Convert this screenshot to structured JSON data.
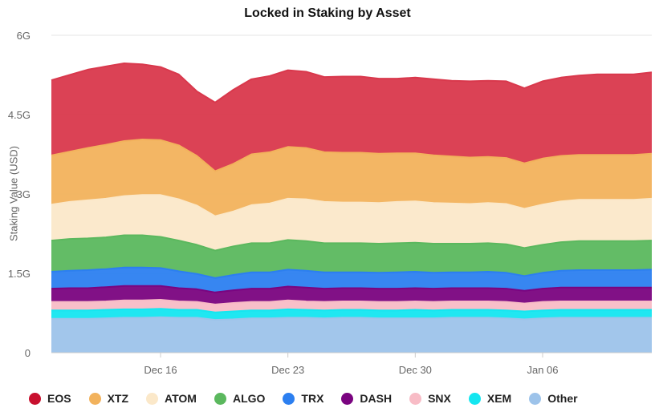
{
  "chart_data": {
    "type": "area",
    "stacked": true,
    "title": "Locked in Staking by Asset",
    "ylabel": "Staking Value (USD)",
    "xlabel": "",
    "ylim": [
      0,
      6
    ],
    "y_ticks": [
      {
        "value": 0,
        "label": "0"
      },
      {
        "value": 1.5,
        "label": "1.5G"
      },
      {
        "value": 3,
        "label": "3G"
      },
      {
        "value": 4.5,
        "label": "4.5G"
      },
      {
        "value": 6,
        "label": "6G"
      }
    ],
    "x_start": "2019-12-10",
    "x_end": "2020-01-12",
    "x_ticks": [
      {
        "date": "2019-12-16",
        "label": "Dec 16"
      },
      {
        "date": "2019-12-23",
        "label": "Dec 23"
      },
      {
        "date": "2019-12-30",
        "label": "Dec 30"
      },
      {
        "date": "2020-01-06",
        "label": "Jan 06"
      }
    ],
    "grid": "horizontal",
    "legend_position": "bottom",
    "x": [
      "2019-12-10",
      "2019-12-11",
      "2019-12-12",
      "2019-12-13",
      "2019-12-14",
      "2019-12-15",
      "2019-12-16",
      "2019-12-17",
      "2019-12-18",
      "2019-12-19",
      "2019-12-20",
      "2019-12-21",
      "2019-12-22",
      "2019-12-23",
      "2019-12-24",
      "2019-12-25",
      "2019-12-26",
      "2019-12-27",
      "2019-12-28",
      "2019-12-29",
      "2019-12-30",
      "2019-12-31",
      "2020-01-01",
      "2020-01-02",
      "2020-01-03",
      "2020-01-04",
      "2020-01-05",
      "2020-01-06",
      "2020-01-07",
      "2020-01-08",
      "2020-01-09",
      "2020-01-10",
      "2020-01-11",
      "2020-01-12"
    ],
    "series": [
      {
        "name": "Other",
        "color": "#9dc3ea",
        "values": [
          0.64,
          0.64,
          0.64,
          0.65,
          0.66,
          0.66,
          0.67,
          0.66,
          0.66,
          0.62,
          0.63,
          0.65,
          0.65,
          0.66,
          0.66,
          0.65,
          0.66,
          0.66,
          0.65,
          0.65,
          0.65,
          0.65,
          0.66,
          0.66,
          0.66,
          0.65,
          0.63,
          0.65,
          0.66,
          0.66,
          0.66,
          0.66,
          0.66,
          0.66
        ]
      },
      {
        "name": "XEM",
        "color": "#14e6f0",
        "values": [
          0.16,
          0.16,
          0.16,
          0.16,
          0.16,
          0.16,
          0.16,
          0.15,
          0.15,
          0.14,
          0.15,
          0.15,
          0.15,
          0.16,
          0.15,
          0.15,
          0.15,
          0.15,
          0.15,
          0.15,
          0.16,
          0.15,
          0.15,
          0.15,
          0.15,
          0.15,
          0.15,
          0.15,
          0.15,
          0.15,
          0.15,
          0.15,
          0.15,
          0.15
        ]
      },
      {
        "name": "SNX",
        "color": "#f8bcc6",
        "values": [
          0.16,
          0.16,
          0.16,
          0.16,
          0.17,
          0.17,
          0.17,
          0.16,
          0.15,
          0.15,
          0.16,
          0.16,
          0.16,
          0.17,
          0.16,
          0.16,
          0.16,
          0.16,
          0.16,
          0.16,
          0.16,
          0.16,
          0.16,
          0.16,
          0.16,
          0.16,
          0.15,
          0.16,
          0.16,
          0.16,
          0.16,
          0.16,
          0.16,
          0.16
        ]
      },
      {
        "name": "DASH",
        "color": "#7a0480",
        "values": [
          0.25,
          0.26,
          0.26,
          0.27,
          0.27,
          0.27,
          0.26,
          0.25,
          0.24,
          0.23,
          0.24,
          0.25,
          0.25,
          0.26,
          0.26,
          0.25,
          0.25,
          0.25,
          0.25,
          0.25,
          0.25,
          0.25,
          0.25,
          0.25,
          0.25,
          0.25,
          0.24,
          0.25,
          0.26,
          0.26,
          0.26,
          0.26,
          0.26,
          0.26
        ]
      },
      {
        "name": "TRX",
        "color": "#2c7ff0",
        "values": [
          0.32,
          0.33,
          0.34,
          0.34,
          0.35,
          0.35,
          0.34,
          0.32,
          0.29,
          0.27,
          0.29,
          0.31,
          0.31,
          0.32,
          0.32,
          0.31,
          0.3,
          0.3,
          0.3,
          0.31,
          0.31,
          0.3,
          0.3,
          0.3,
          0.31,
          0.3,
          0.28,
          0.3,
          0.32,
          0.33,
          0.33,
          0.33,
          0.33,
          0.34
        ]
      },
      {
        "name": "ALGO",
        "color": "#5bb85e",
        "values": [
          0.59,
          0.6,
          0.6,
          0.6,
          0.61,
          0.61,
          0.59,
          0.58,
          0.55,
          0.52,
          0.54,
          0.55,
          0.55,
          0.56,
          0.56,
          0.55,
          0.55,
          0.55,
          0.55,
          0.55,
          0.55,
          0.55,
          0.54,
          0.54,
          0.54,
          0.54,
          0.53,
          0.53,
          0.54,
          0.55,
          0.55,
          0.55,
          0.55,
          0.55
        ]
      },
      {
        "name": "ATOM",
        "color": "#fbe8c9",
        "values": [
          0.68,
          0.7,
          0.72,
          0.73,
          0.74,
          0.76,
          0.79,
          0.78,
          0.74,
          0.65,
          0.66,
          0.72,
          0.75,
          0.78,
          0.79,
          0.78,
          0.77,
          0.77,
          0.77,
          0.78,
          0.78,
          0.77,
          0.76,
          0.75,
          0.76,
          0.76,
          0.74,
          0.76,
          0.77,
          0.78,
          0.78,
          0.78,
          0.78,
          0.79
        ]
      },
      {
        "name": "XTZ",
        "color": "#f2b25c",
        "values": [
          0.93,
          0.95,
          0.99,
          1.02,
          1.04,
          1.05,
          1.04,
          1.02,
          0.94,
          0.85,
          0.9,
          0.96,
          0.97,
          0.98,
          0.97,
          0.94,
          0.94,
          0.94,
          0.93,
          0.92,
          0.91,
          0.9,
          0.89,
          0.88,
          0.87,
          0.87,
          0.86,
          0.87,
          0.86,
          0.85,
          0.85,
          0.85,
          0.85,
          0.85
        ]
      },
      {
        "name": "EOS",
        "color": "#d9384c",
        "values": [
          1.42,
          1.45,
          1.48,
          1.48,
          1.47,
          1.42,
          1.38,
          1.34,
          1.22,
          1.3,
          1.4,
          1.42,
          1.44,
          1.45,
          1.44,
          1.42,
          1.44,
          1.44,
          1.42,
          1.41,
          1.43,
          1.44,
          1.43,
          1.44,
          1.44,
          1.45,
          1.42,
          1.46,
          1.48,
          1.5,
          1.52,
          1.52,
          1.52,
          1.54
        ]
      }
    ]
  }
}
